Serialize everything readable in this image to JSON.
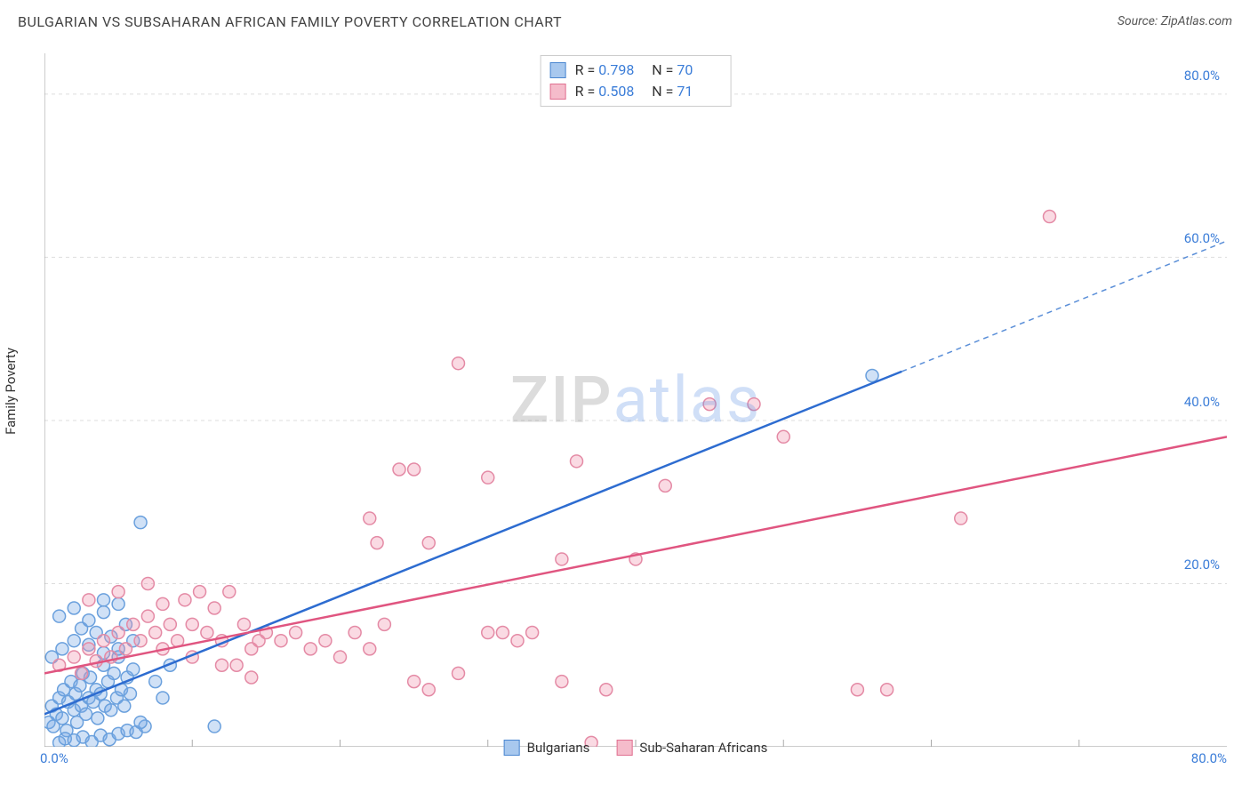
{
  "header": {
    "title": "BULGARIAN VS SUBSAHARAN AFRICAN FAMILY POVERTY CORRELATION CHART",
    "source_label": "Source:",
    "source_value": "ZipAtlas.com"
  },
  "watermark": {
    "part1": "ZIP",
    "part2": "atlas"
  },
  "chart": {
    "type": "scatter",
    "ylabel": "Family Poverty",
    "background_color": "#ffffff",
    "grid_color": "#dddddd",
    "axis_color": "#999999",
    "tick_color": "#aaaaaa",
    "label_color": "#3b7dd8",
    "xlim": [
      0,
      80
    ],
    "ylim": [
      0,
      85
    ],
    "xtick_values": [
      0,
      80
    ],
    "xtick_labels": [
      "0.0%",
      "80.0%"
    ],
    "xtick_minor": [
      10,
      20,
      30,
      40,
      50,
      60,
      70
    ],
    "ytick_values": [
      20,
      40,
      60,
      80
    ],
    "ytick_labels": [
      "20.0%",
      "40.0%",
      "60.0%",
      "80.0%"
    ],
    "marker_radius": 7,
    "marker_stroke_width": 1.5,
    "line_width": 2.5,
    "series": [
      {
        "name": "Bulgarians",
        "fill": "rgba(120,170,230,0.35)",
        "stroke": "#6aa0dd",
        "swatch_fill": "#a8c8ee",
        "swatch_stroke": "#4a86d0",
        "R": "0.798",
        "N": "70",
        "trend": {
          "x1": 0,
          "y1": 4,
          "x2": 58,
          "y2": 46,
          "ext_x2": 80,
          "ext_y2": 62,
          "color": "#2d6cd0",
          "dash_color": "#5b8fd8"
        },
        "points": [
          [
            0.3,
            3.0
          ],
          [
            0.5,
            5.0
          ],
          [
            0.6,
            2.5
          ],
          [
            0.8,
            4.0
          ],
          [
            1.0,
            6.0
          ],
          [
            1.2,
            3.5
          ],
          [
            1.3,
            7.0
          ],
          [
            1.5,
            2.0
          ],
          [
            1.6,
            5.5
          ],
          [
            1.8,
            8.0
          ],
          [
            2.0,
            4.5
          ],
          [
            2.1,
            6.5
          ],
          [
            2.2,
            3.0
          ],
          [
            2.4,
            7.5
          ],
          [
            2.5,
            5.0
          ],
          [
            2.6,
            9.0
          ],
          [
            2.8,
            4.0
          ],
          [
            3.0,
            6.0
          ],
          [
            3.1,
            8.5
          ],
          [
            3.3,
            5.5
          ],
          [
            3.5,
            7.0
          ],
          [
            3.6,
            3.5
          ],
          [
            3.8,
            6.5
          ],
          [
            4.0,
            10.0
          ],
          [
            4.1,
            5.0
          ],
          [
            4.3,
            8.0
          ],
          [
            4.5,
            4.5
          ],
          [
            4.7,
            9.0
          ],
          [
            4.9,
            6.0
          ],
          [
            5.0,
            11.0
          ],
          [
            5.2,
            7.0
          ],
          [
            5.4,
            5.0
          ],
          [
            5.6,
            8.5
          ],
          [
            5.8,
            6.5
          ],
          [
            6.0,
            9.5
          ],
          [
            1.0,
            0.5
          ],
          [
            1.4,
            1.0
          ],
          [
            2.0,
            0.8
          ],
          [
            2.6,
            1.2
          ],
          [
            3.2,
            0.6
          ],
          [
            3.8,
            1.4
          ],
          [
            4.4,
            0.9
          ],
          [
            5.0,
            1.6
          ],
          [
            5.6,
            2.0
          ],
          [
            6.2,
            1.8
          ],
          [
            6.8,
            2.5
          ],
          [
            0.5,
            11.0
          ],
          [
            1.2,
            12.0
          ],
          [
            2.0,
            13.0
          ],
          [
            2.5,
            14.5
          ],
          [
            3.0,
            12.5
          ],
          [
            3.5,
            14.0
          ],
          [
            4.0,
            11.5
          ],
          [
            4.5,
            13.5
          ],
          [
            5.0,
            12.0
          ],
          [
            5.5,
            15.0
          ],
          [
            6.0,
            13.0
          ],
          [
            1.0,
            16.0
          ],
          [
            2.0,
            17.0
          ],
          [
            3.0,
            15.5
          ],
          [
            4.0,
            16.5
          ],
          [
            6.5,
            27.5
          ],
          [
            7.5,
            8.0
          ],
          [
            8.0,
            6.0
          ],
          [
            8.5,
            10.0
          ],
          [
            4.0,
            18.0
          ],
          [
            5.0,
            17.5
          ],
          [
            11.5,
            2.5
          ],
          [
            6.5,
            3.0
          ],
          [
            56.0,
            45.5
          ]
        ]
      },
      {
        "name": "Sub-Saharan Africans",
        "fill": "rgba(240,150,175,0.35)",
        "stroke": "#e48aa5",
        "swatch_fill": "#f5bccb",
        "swatch_stroke": "#e07090",
        "R": "0.508",
        "N": "71",
        "trend": {
          "x1": 0,
          "y1": 9,
          "x2": 80,
          "y2": 38,
          "color": "#e05580"
        },
        "points": [
          [
            1.0,
            10.0
          ],
          [
            2.0,
            11.0
          ],
          [
            2.5,
            9.0
          ],
          [
            3.0,
            12.0
          ],
          [
            3.5,
            10.5
          ],
          [
            4.0,
            13.0
          ],
          [
            4.5,
            11.0
          ],
          [
            5.0,
            14.0
          ],
          [
            5.5,
            12.0
          ],
          [
            6.0,
            15.0
          ],
          [
            6.5,
            13.0
          ],
          [
            7.0,
            16.0
          ],
          [
            7.5,
            14.0
          ],
          [
            8.0,
            12.0
          ],
          [
            8.5,
            15.0
          ],
          [
            9.0,
            13.0
          ],
          [
            9.5,
            18.0
          ],
          [
            10.0,
            15.0
          ],
          [
            10.5,
            19.0
          ],
          [
            11.0,
            14.0
          ],
          [
            11.5,
            17.0
          ],
          [
            12.0,
            13.0
          ],
          [
            12.5,
            19.0
          ],
          [
            13.0,
            10.0
          ],
          [
            13.5,
            15.0
          ],
          [
            14.0,
            12.0
          ],
          [
            14.5,
            13.0
          ],
          [
            15.0,
            14.0
          ],
          [
            16.0,
            13.0
          ],
          [
            17.0,
            14.0
          ],
          [
            18.0,
            12.0
          ],
          [
            19.0,
            13.0
          ],
          [
            20.0,
            11.0
          ],
          [
            21.0,
            14.0
          ],
          [
            22.0,
            12.0
          ],
          [
            23.0,
            15.0
          ],
          [
            25.0,
            8.0
          ],
          [
            26.0,
            7.0
          ],
          [
            28.0,
            9.0
          ],
          [
            30.0,
            14.0
          ],
          [
            32.0,
            13.0
          ],
          [
            35.0,
            8.0
          ],
          [
            22.5,
            25.0
          ],
          [
            22.0,
            28.0
          ],
          [
            24.0,
            34.0
          ],
          [
            25.0,
            34.0
          ],
          [
            26.0,
            25.0
          ],
          [
            28.0,
            47.0
          ],
          [
            30.0,
            33.0
          ],
          [
            31.0,
            14.0
          ],
          [
            33.0,
            14.0
          ],
          [
            35.0,
            23.0
          ],
          [
            36.0,
            35.0
          ],
          [
            38.0,
            7.0
          ],
          [
            40.0,
            23.0
          ],
          [
            42.0,
            32.0
          ],
          [
            45.0,
            42.0
          ],
          [
            48.0,
            42.0
          ],
          [
            50.0,
            38.0
          ],
          [
            55.0,
            7.0
          ],
          [
            57.0,
            7.0
          ],
          [
            62.0,
            28.0
          ],
          [
            68.0,
            65.0
          ],
          [
            37.0,
            0.5
          ],
          [
            3.0,
            18.0
          ],
          [
            5.0,
            19.0
          ],
          [
            7.0,
            20.0
          ],
          [
            8.0,
            17.5
          ],
          [
            10.0,
            11.0
          ],
          [
            12.0,
            10.0
          ],
          [
            14.0,
            8.5
          ]
        ]
      }
    ],
    "legend_top": {
      "border_color": "#cccccc",
      "R_label": "R =",
      "N_label": "N ="
    },
    "legend_bottom": {
      "items": [
        "Bulgarians",
        "Sub-Saharan Africans"
      ]
    }
  }
}
